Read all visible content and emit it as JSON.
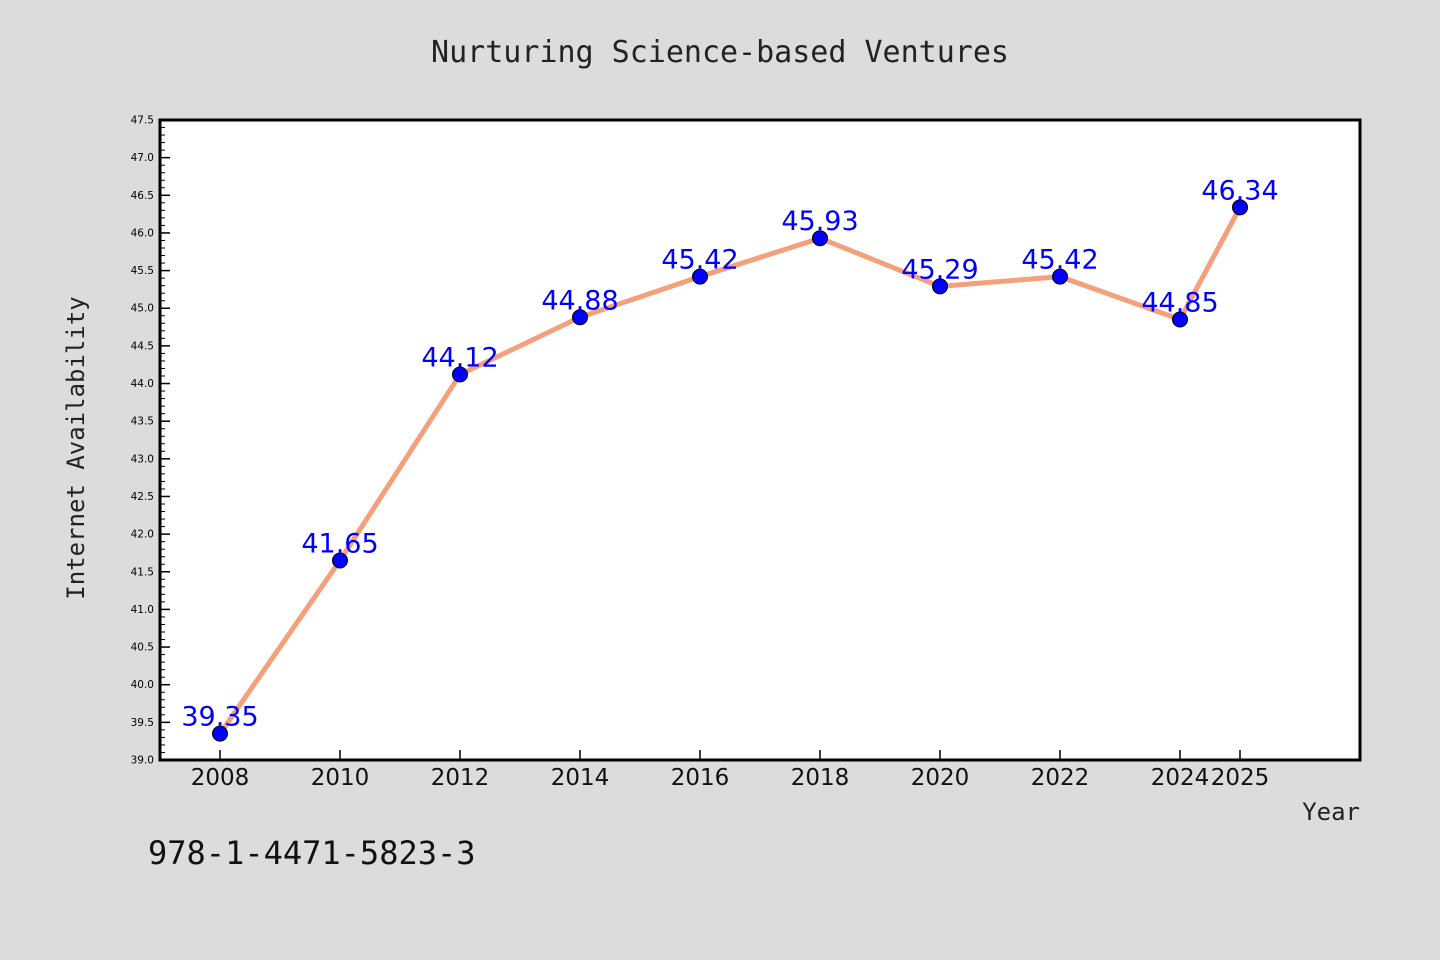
{
  "chart_data": {
    "type": "line",
    "title": "Nurturing Science-based Ventures",
    "xlabel": "Year",
    "ylabel": "Internet Availability",
    "categories": [
      "2008",
      "2010",
      "2012",
      "2014",
      "2016",
      "2018",
      "2020",
      "2022",
      "2024",
      "2025"
    ],
    "series": [
      {
        "values": [
          39.35,
          41.65,
          44.12,
          44.88,
          45.42,
          45.93,
          45.29,
          45.42,
          44.85,
          46.34
        ],
        "labels": [
          "39.35",
          "41.65",
          "44.12",
          "44.88",
          "45.42",
          "45.93",
          "45.29",
          "45.42",
          "44.85",
          "46.34"
        ],
        "line_color": "#f4a07c",
        "marker_color": "#0000ff"
      }
    ],
    "ylim": [
      39.0,
      47.5
    ],
    "yticks": [
      "39.0",
      "39.5",
      "40.0",
      "40.5",
      "41.0",
      "41.5",
      "42.0",
      "42.5",
      "43.0",
      "43.5",
      "44.0",
      "44.5",
      "45.0",
      "45.5",
      "46.0",
      "46.5",
      "47.0",
      "47.5"
    ],
    "grid": false,
    "annotation": "978-1-4471-5823-3",
    "label_color": "#0000ff",
    "background": "#dcdcdc"
  }
}
